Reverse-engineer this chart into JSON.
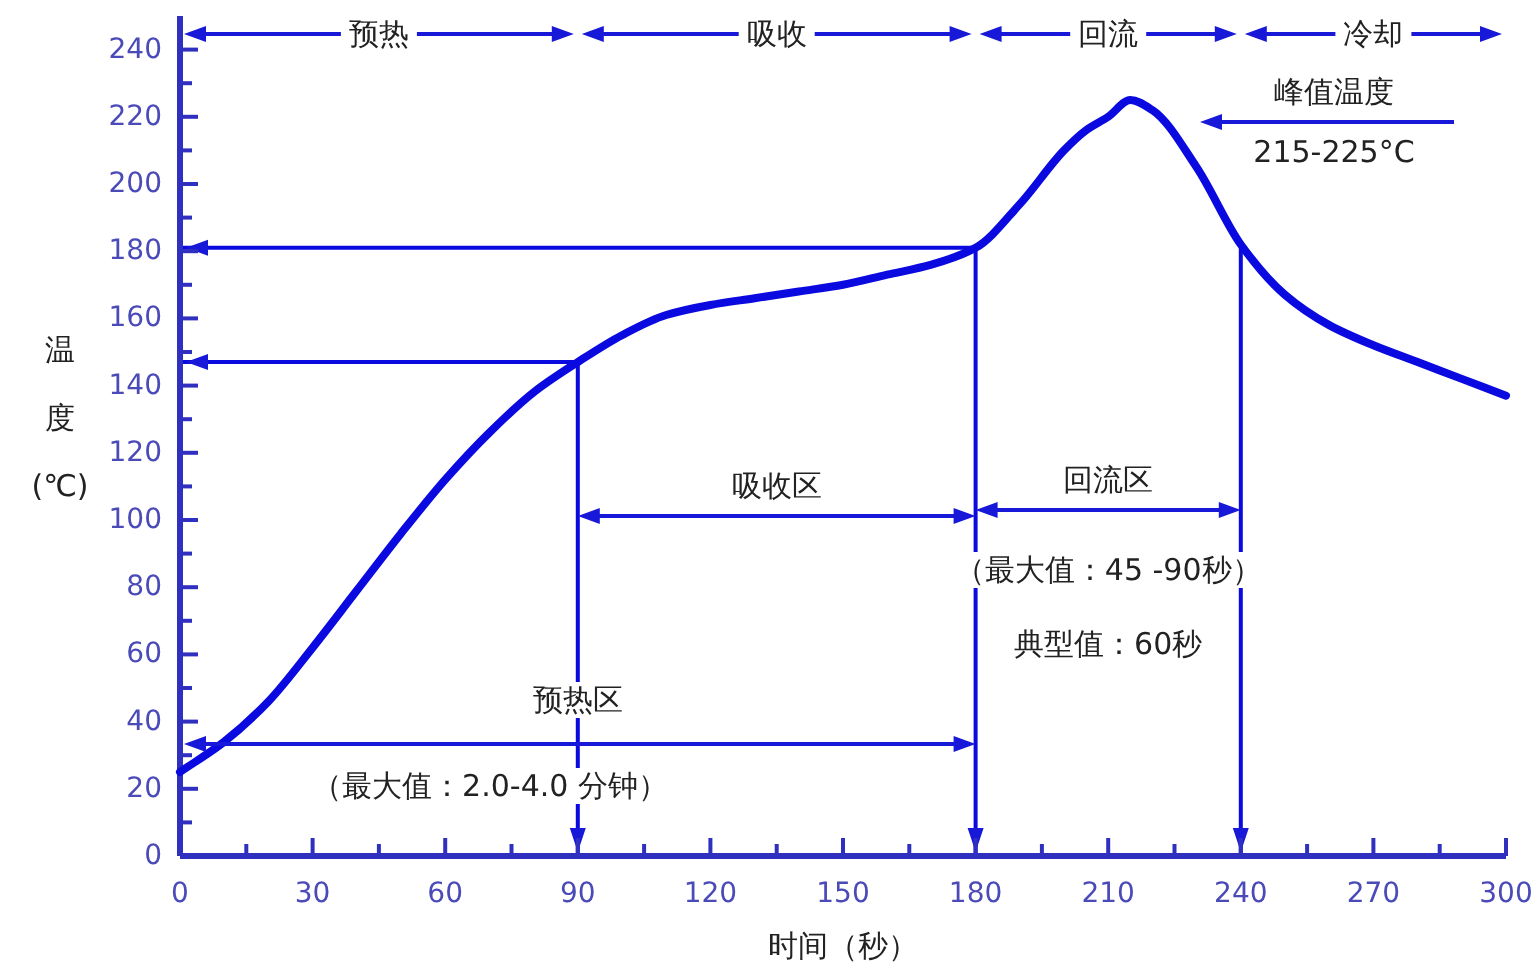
{
  "chart_data": {
    "type": "line",
    "xlabel": "时间（秒）",
    "ylabel": "温度(℃)",
    "x": [
      0,
      10,
      20,
      30,
      40,
      50,
      60,
      70,
      80,
      90,
      100,
      110,
      120,
      130,
      140,
      150,
      160,
      170,
      180,
      190,
      200,
      205,
      210,
      215,
      220,
      230,
      240,
      250,
      260,
      270,
      280,
      290,
      300
    ],
    "series": [
      {
        "color": "#0a0ae0",
        "values": [
          25,
          34,
          46,
          62,
          79,
          96,
          112,
          126,
          138,
          147,
          155,
          161,
          164,
          166,
          168,
          170,
          173,
          176,
          181,
          194,
          210,
          216,
          220,
          225,
          222,
          205,
          182,
          167,
          158,
          152,
          147,
          142,
          137
        ]
      }
    ],
    "xlim": [
      0,
      300
    ],
    "ylim": [
      0,
      250
    ],
    "xticks": [
      0,
      {
        "value": 15,
        "label": null
      },
      30,
      {
        "value": 45,
        "label": null
      },
      60,
      {
        "value": 75,
        "label": null
      },
      90,
      {
        "value": 105,
        "label": null
      },
      120,
      {
        "value": 135,
        "label": null
      },
      150,
      {
        "value": 165,
        "label": null
      },
      180,
      {
        "value": 195,
        "label": null
      },
      210,
      {
        "value": 225,
        "label": null
      },
      240,
      {
        "value": 255,
        "label": null
      },
      270,
      {
        "value": 285,
        "label": null
      },
      300
    ],
    "yticks": [
      0,
      {
        "value": 10,
        "label": null
      },
      20,
      {
        "value": 30,
        "label": null
      },
      40,
      {
        "value": 50,
        "label": null
      },
      60,
      {
        "value": 70,
        "label": null
      },
      80,
      {
        "value": 90,
        "label": null
      },
      100,
      {
        "value": 110,
        "label": null
      },
      120,
      {
        "value": 130,
        "label": null
      },
      140,
      {
        "value": 150,
        "label": null
      },
      160,
      {
        "value": 170,
        "label": null
      },
      180,
      {
        "value": 190,
        "label": null
      },
      200,
      {
        "value": 210,
        "label": null
      },
      220,
      {
        "value": 230,
        "label": null
      },
      240
    ],
    "ref_lines": [
      {
        "axis": "y",
        "value": 147,
        "color": "#0a0ae0"
      },
      {
        "axis": "y",
        "value": 181,
        "color": "#0a0ae0"
      },
      {
        "axis": "x",
        "value": 90,
        "color": "#0a0ae0"
      },
      {
        "axis": "x",
        "value": 180,
        "color": "#0a0ae0"
      },
      {
        "axis": "x",
        "value": 240,
        "color": "#0a0ae0"
      }
    ],
    "annotations": [
      "预热",
      "吸收",
      "回流",
      "冷却",
      "吸收区",
      "回流区",
      "预热区",
      "（最大值：2.0-4.0 分钟）",
      "（最大值：45 -90秒）",
      "典型值：60秒",
      "峰值温度",
      "215-225°C"
    ],
    "grid": false,
    "marker": "none",
    "line_style": "solid"
  }
}
